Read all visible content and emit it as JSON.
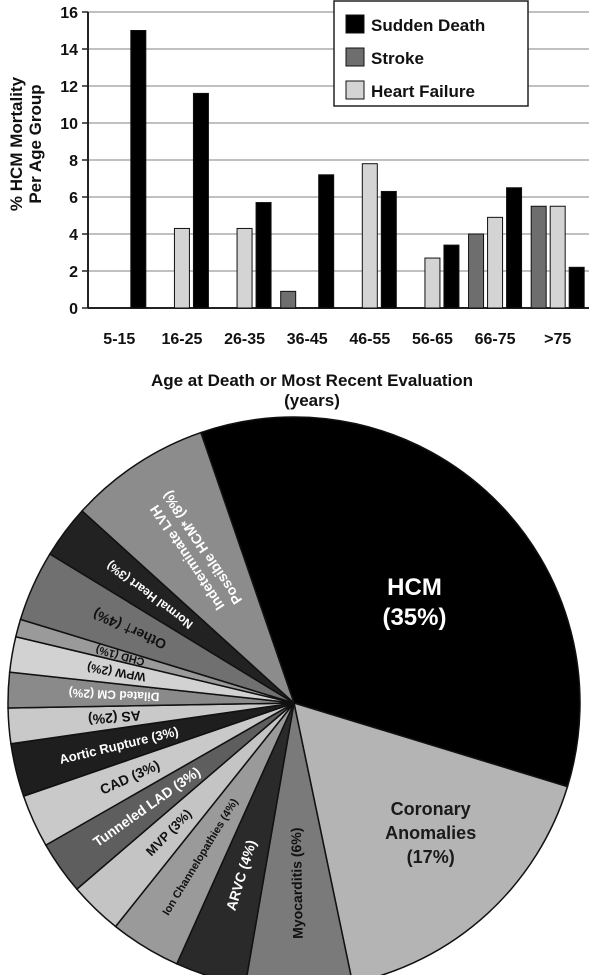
{
  "chart_data": [
    {
      "type": "bar",
      "title": "",
      "xlabel": "Age at Death or Most Recent Evaluation (years)",
      "xlabel_lines": [
        "Age at Death or Most Recent Evaluation",
        "(years)"
      ],
      "ylabel": "% HCM Mortality Per Age Group",
      "ylabel_lines": [
        "% HCM Mortality",
        "Per Age Group"
      ],
      "ylim": [
        0,
        16
      ],
      "yticks": [
        0,
        2,
        4,
        6,
        8,
        10,
        12,
        14,
        16
      ],
      "grid": true,
      "legend_position": "top-right",
      "categories": [
        "5-15",
        "16-25",
        "26-35",
        "36-45",
        "46-55",
        "56-65",
        "66-75",
        ">75"
      ],
      "series": [
        {
          "name": "Stroke",
          "color": "#6e6e6e",
          "values": [
            0,
            0,
            0,
            0.9,
            0,
            0,
            4.0,
            5.5
          ]
        },
        {
          "name": "Heart Failure",
          "color": "#d4d4d4",
          "values": [
            0,
            4.3,
            4.3,
            0,
            7.8,
            2.7,
            4.9,
            5.5
          ]
        },
        {
          "name": "Sudden Death",
          "color": "#000000",
          "values": [
            15.0,
            11.6,
            5.7,
            7.2,
            6.3,
            3.4,
            6.5,
            2.2
          ]
        }
      ],
      "legend_order": [
        "Sudden Death",
        "Stroke",
        "Heart Failure"
      ]
    },
    {
      "type": "pie",
      "title": "",
      "slices": [
        {
          "label": "HCM (35%)",
          "lines": [
            "HCM",
            "(35%)"
          ],
          "value": 35,
          "color": "#000000",
          "text_color": "#ffffff"
        },
        {
          "label": "Coronary Anomalies (17%)",
          "lines": [
            "Coronary",
            "Anomalies",
            "(17%)"
          ],
          "value": 17,
          "color": "#b4b4b4",
          "text_color": "#1a1a1a"
        },
        {
          "label": "Myocarditis (6%)",
          "lines": [
            "Myocarditis (6%)"
          ],
          "value": 6,
          "color": "#7a7a7a",
          "text_color": "#111111"
        },
        {
          "label": "ARVC (4%)",
          "lines": [
            "ARVC (4%)"
          ],
          "value": 4,
          "color": "#2a2a2a",
          "text_color": "#ffffff"
        },
        {
          "label": "Ion Channelopathies (4%)",
          "lines": [
            "Ion Channelopathies (4%)"
          ],
          "value": 4,
          "color": "#9a9a9a",
          "text_color": "#111111"
        },
        {
          "label": "MVP (3%)",
          "lines": [
            "MVP (3%)"
          ],
          "value": 3,
          "color": "#c4c4c4",
          "text_color": "#111111"
        },
        {
          "label": "Tunneled LAD (3%)",
          "lines": [
            "Tunneled LAD (3%)"
          ],
          "value": 3,
          "color": "#5e5e5e",
          "text_color": "#ffffff"
        },
        {
          "label": "CAD (3%)",
          "lines": [
            "CAD (3%)"
          ],
          "value": 3,
          "color": "#c9c9c9",
          "text_color": "#111111"
        },
        {
          "label": "Aortic Rupture (3%)",
          "lines": [
            "Aortic Rupture (3%)"
          ],
          "value": 3,
          "color": "#1e1e1e",
          "text_color": "#ffffff"
        },
        {
          "label": "AS (2%)",
          "lines": [
            "AS (2%)"
          ],
          "value": 2,
          "color": "#c9c9c9",
          "text_color": "#111111"
        },
        {
          "label": "Dilated CM (2%)",
          "lines": [
            "Dilated CM (2%)"
          ],
          "value": 2,
          "color": "#8a8a8a",
          "text_color": "#ffffff"
        },
        {
          "label": "WPW (2%)",
          "lines": [
            "WPW (2%)"
          ],
          "value": 2,
          "color": "#d2d2d2",
          "text_color": "#111111"
        },
        {
          "label": "CHD (1%)",
          "lines": [
            "CHD (1%)"
          ],
          "value": 1,
          "color": "#9a9a9a",
          "text_color": "#111111"
        },
        {
          "label": "Other† (4%)",
          "lines": [
            "Other† (4%)"
          ],
          "value": 4,
          "color": "#707070",
          "text_color": "#111111"
        },
        {
          "label": "Normal Heart (3%)",
          "lines": [
            "Normal Heart (3%)"
          ],
          "value": 3,
          "color": "#222222",
          "text_color": "#ffffff"
        },
        {
          "label": "Indeterminate LVH Possible HCM* (8%)",
          "lines": [
            "Indeterminate LVH",
            "Possible HCM* (8%)"
          ],
          "value": 8,
          "color": "#8c8c8c",
          "text_color": "#ffffff"
        }
      ]
    }
  ]
}
